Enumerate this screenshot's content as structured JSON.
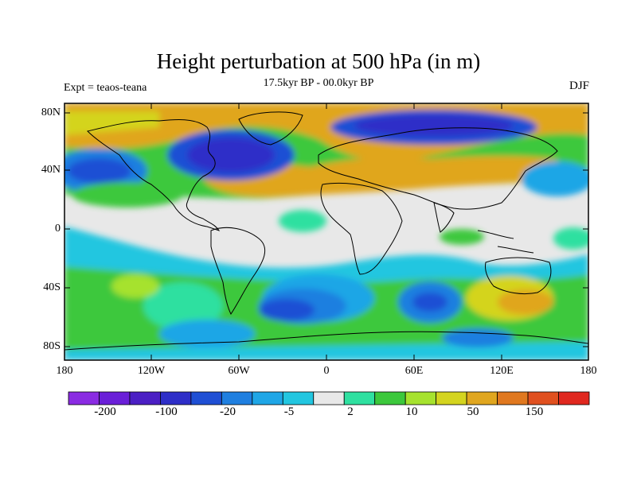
{
  "title": "Height perturbation at 500 hPa (in m)",
  "subtitle": "17.5kyr BP - 00.0kyr BP",
  "left_label": "Expt = teaos-teana",
  "right_label": "DJF",
  "lat_ticks": [
    "80N",
    "40N",
    "0",
    "40S",
    "80S"
  ],
  "lon_ticks": [
    "180",
    "120W",
    "60W",
    "0",
    "60E",
    "120E",
    "180"
  ],
  "colorbar": {
    "colors": [
      "#8a2be2",
      "#6a1fd8",
      "#4b1fc4",
      "#2e2ec8",
      "#1f4fd4",
      "#1f7fe0",
      "#1fa6e6",
      "#22c6e0",
      "#e8e8e8",
      "#2fe0a0",
      "#3cc83c",
      "#a6e22e",
      "#d4d41f",
      "#e0a61f",
      "#e0781f",
      "#e0501f",
      "#e0281f"
    ],
    "labels": [
      "-200",
      "-100",
      "-20",
      "-5",
      "2",
      "10",
      "50",
      "150"
    ]
  },
  "map_data": {
    "field": "500 hPa height perturbation",
    "units": "m",
    "projection": "cylindrical equidistant",
    "lon_range": [
      -180,
      180
    ],
    "lat_range": [
      -90,
      90
    ]
  }
}
